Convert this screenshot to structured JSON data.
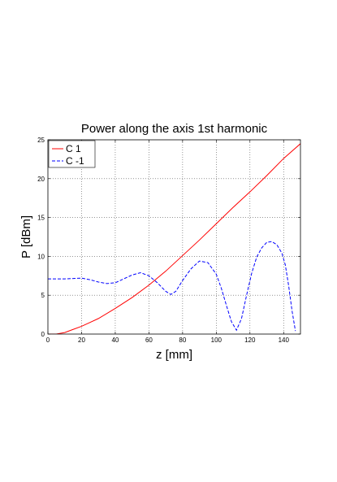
{
  "chart_data": {
    "type": "line",
    "title": "Power along the axis 1st harmonic",
    "xlabel": "z [mm]",
    "ylabel": "P [dBm]",
    "xlim": [
      0,
      150
    ],
    "ylim": [
      0,
      25
    ],
    "xticks": [
      0,
      20,
      40,
      60,
      80,
      100,
      120,
      140
    ],
    "yticks": [
      0,
      5,
      10,
      15,
      20,
      25
    ],
    "grid": true,
    "legend": "top-left",
    "series": [
      {
        "name": "C 1",
        "color": "#ff0000",
        "style": "solid",
        "x": [
          0,
          5,
          10,
          15,
          20,
          25,
          30,
          40,
          50,
          60,
          70,
          80,
          90,
          100,
          110,
          120,
          130,
          140,
          150
        ],
        "y": [
          0,
          0,
          0.2,
          0.6,
          1.0,
          1.5,
          2.0,
          3.3,
          4.7,
          6.3,
          8.1,
          10.1,
          12.1,
          14.2,
          16.3,
          18.3,
          20.4,
          22.6,
          24.5
        ]
      },
      {
        "name": "C -1",
        "color": "#0000ff",
        "style": "dashed",
        "x": [
          0,
          10,
          20,
          25,
          30,
          35,
          40,
          45,
          50,
          55,
          60,
          65,
          70,
          73,
          76,
          80,
          85,
          90,
          95,
          100,
          103,
          106,
          109,
          112,
          115,
          118,
          121,
          124,
          127,
          130,
          133,
          136,
          139,
          141,
          143,
          145,
          147
        ],
        "y": [
          7.1,
          7.1,
          7.2,
          7.0,
          6.7,
          6.5,
          6.6,
          7.1,
          7.6,
          7.9,
          7.5,
          6.6,
          5.5,
          5.1,
          5.5,
          6.9,
          8.4,
          9.4,
          9.2,
          7.7,
          5.9,
          3.7,
          1.6,
          0.5,
          2.0,
          5.0,
          7.8,
          9.9,
          11.1,
          11.8,
          11.9,
          11.5,
          10.4,
          8.9,
          6.2,
          3.0,
          0.4
        ]
      }
    ]
  }
}
